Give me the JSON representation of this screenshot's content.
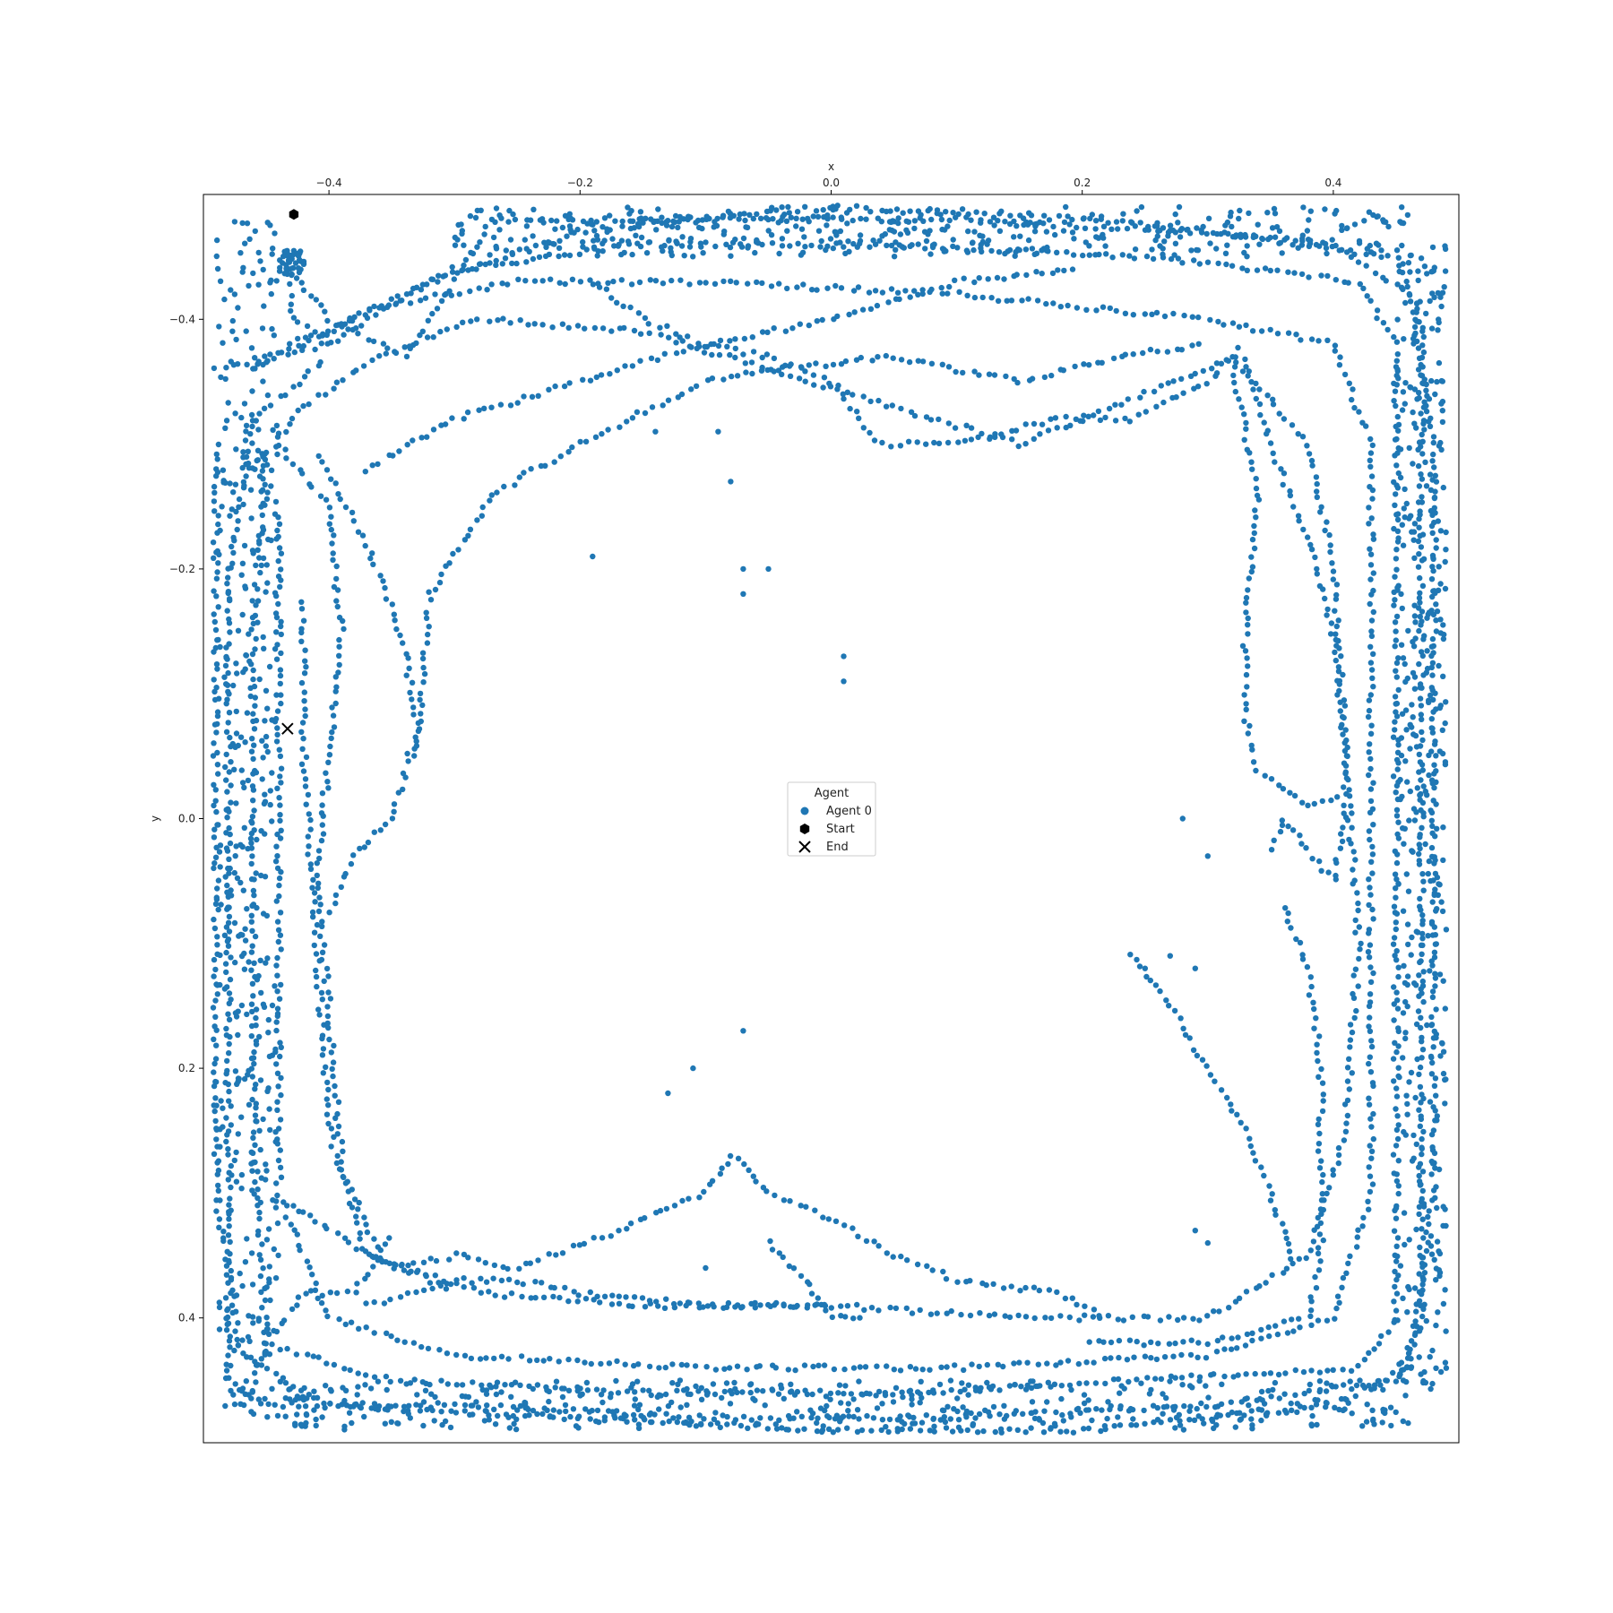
{
  "chart_data": {
    "type": "scatter",
    "title": "",
    "xlabel": "x",
    "ylabel": "y",
    "x_axis_position": "top",
    "y_axis_inverted": true,
    "xlim": [
      -0.5,
      0.5
    ],
    "ylim": [
      -0.5,
      0.5
    ],
    "x_ticks": [
      -0.4,
      -0.2,
      0.0,
      0.2,
      0.4
    ],
    "x_tick_labels": [
      "−0.4",
      "−0.2",
      "0.0",
      "0.2",
      "0.4"
    ],
    "y_ticks": [
      -0.4,
      -0.2,
      0.0,
      0.2,
      0.4
    ],
    "y_tick_labels": [
      "−0.4",
      "−0.2",
      "0.0",
      "0.2",
      "0.4"
    ],
    "grid": false,
    "legend": {
      "title": "Agent",
      "placement": "center",
      "entries": [
        {
          "label": "Agent 0",
          "marker": "circle",
          "color": "#1f77b4"
        },
        {
          "label": "Start",
          "marker": "hexagon",
          "color": "#000000"
        },
        {
          "label": "End",
          "marker": "x",
          "color": "#000000"
        }
      ]
    },
    "series": [
      {
        "name": "Agent 0",
        "color": "#1f77b4",
        "description_paths": [
          [
            [
              -0.43,
              -0.44
            ],
            [
              -0.4,
              -0.4
            ],
            [
              -0.34,
              -0.37
            ],
            [
              -0.3,
              -0.43
            ],
            [
              -0.27,
              -0.48
            ],
            [
              -0.1,
              -0.48
            ],
            [
              0.1,
              -0.48
            ],
            [
              0.3,
              -0.47
            ],
            [
              0.45,
              -0.45
            ],
            [
              0.47,
              -0.4
            ],
            [
              0.47,
              -0.2
            ],
            [
              0.47,
              0.0
            ],
            [
              0.47,
              0.2
            ],
            [
              0.47,
              0.4
            ],
            [
              0.45,
              0.45
            ],
            [
              0.3,
              0.47
            ],
            [
              0.1,
              0.48
            ],
            [
              -0.1,
              0.48
            ],
            [
              -0.3,
              0.47
            ],
            [
              -0.45,
              0.47
            ],
            [
              -0.48,
              0.45
            ],
            [
              -0.48,
              0.2
            ],
            [
              -0.48,
              0.0
            ],
            [
              -0.48,
              -0.2
            ],
            [
              -0.46,
              -0.32
            ],
            [
              -0.4,
              -0.37
            ]
          ],
          [
            [
              -0.49,
              -0.36
            ],
            [
              -0.4,
              -0.38
            ],
            [
              -0.32,
              -0.43
            ],
            [
              -0.2,
              -0.47
            ],
            [
              0.0,
              -0.49
            ],
            [
              0.2,
              -0.48
            ],
            [
              0.4,
              -0.46
            ],
            [
              0.46,
              -0.42
            ],
            [
              0.48,
              -0.3
            ],
            [
              0.48,
              -0.1
            ],
            [
              0.48,
              0.1
            ],
            [
              0.48,
              0.3
            ],
            [
              0.46,
              0.44
            ],
            [
              0.4,
              0.47
            ],
            [
              0.2,
              0.49
            ],
            [
              0.0,
              0.49
            ],
            [
              -0.2,
              0.48
            ],
            [
              -0.4,
              0.47
            ],
            [
              -0.47,
              0.43
            ],
            [
              -0.49,
              0.3
            ],
            [
              -0.49,
              0.1
            ],
            [
              -0.49,
              -0.1
            ],
            [
              -0.49,
              -0.3
            ]
          ],
          [
            [
              -0.46,
              -0.36
            ],
            [
              -0.38,
              -0.4
            ],
            [
              -0.3,
              -0.44
            ],
            [
              -0.15,
              -0.46
            ],
            [
              0.05,
              -0.46
            ],
            [
              0.25,
              -0.45
            ],
            [
              0.42,
              -0.43
            ],
            [
              0.45,
              -0.38
            ],
            [
              0.45,
              -0.15
            ],
            [
              0.45,
              0.05
            ],
            [
              0.45,
              0.25
            ],
            [
              0.45,
              0.4
            ],
            [
              0.42,
              0.44
            ],
            [
              0.25,
              0.45
            ],
            [
              0.05,
              0.46
            ],
            [
              -0.15,
              0.46
            ],
            [
              -0.35,
              0.45
            ],
            [
              -0.45,
              0.42
            ],
            [
              -0.46,
              0.25
            ],
            [
              -0.46,
              0.05
            ],
            [
              -0.46,
              -0.15
            ],
            [
              -0.45,
              -0.3
            ]
          ],
          [
            [
              -0.43,
              -0.38
            ],
            [
              -0.36,
              -0.41
            ],
            [
              -0.25,
              -0.43
            ],
            [
              -0.1,
              -0.43
            ],
            [
              0.1,
              -0.42
            ],
            [
              0.3,
              -0.4
            ],
            [
              0.4,
              -0.38
            ],
            [
              0.43,
              -0.3
            ],
            [
              0.43,
              -0.1
            ],
            [
              0.43,
              0.1
            ],
            [
              0.43,
              0.3
            ],
            [
              0.4,
              0.4
            ],
            [
              0.3,
              0.43
            ],
            [
              0.1,
              0.44
            ],
            [
              -0.1,
              0.44
            ],
            [
              -0.3,
              0.43
            ],
            [
              -0.4,
              0.4
            ],
            [
              -0.44,
              0.3
            ],
            [
              -0.44,
              0.1
            ],
            [
              -0.44,
              -0.1
            ],
            [
              -0.44,
              -0.25
            ]
          ],
          [
            [
              -0.46,
              -0.28
            ],
            [
              -0.42,
              -0.33
            ],
            [
              -0.36,
              -0.37
            ],
            [
              -0.28,
              -0.4
            ],
            [
              -0.15,
              -0.39
            ],
            [
              -0.05,
              -0.36
            ],
            [
              0.05,
              -0.33
            ],
            [
              0.15,
              -0.3
            ],
            [
              0.25,
              -0.34
            ],
            [
              0.32,
              -0.37
            ],
            [
              0.38,
              -0.3
            ],
            [
              0.4,
              -0.2
            ],
            [
              0.41,
              -0.05
            ],
            [
              0.42,
              0.1
            ],
            [
              0.41,
              0.25
            ],
            [
              0.38,
              0.35
            ],
            [
              0.3,
              0.4
            ],
            [
              0.15,
              0.4
            ],
            [
              0.0,
              0.39
            ],
            [
              -0.15,
              0.39
            ],
            [
              -0.28,
              0.38
            ],
            [
              -0.37,
              0.35
            ],
            [
              -0.4,
              0.25
            ],
            [
              -0.41,
              0.1
            ],
            [
              -0.42,
              -0.05
            ],
            [
              -0.42,
              -0.18
            ]
          ],
          [
            [
              -0.44,
              -0.3
            ],
            [
              -0.4,
              -0.25
            ],
            [
              -0.39,
              -0.15
            ],
            [
              -0.4,
              -0.05
            ],
            [
              -0.41,
              0.05
            ],
            [
              -0.4,
              0.15
            ],
            [
              -0.39,
              0.28
            ],
            [
              -0.36,
              0.35
            ],
            [
              -0.3,
              0.38
            ]
          ],
          [
            [
              -0.41,
              -0.29
            ],
            [
              -0.37,
              -0.22
            ],
            [
              -0.34,
              -0.14
            ],
            [
              -0.33,
              -0.07
            ],
            [
              -0.35,
              0.0
            ],
            [
              -0.38,
              0.03
            ],
            [
              -0.4,
              0.08
            ]
          ],
          [
            [
              -0.37,
              -0.28
            ],
            [
              -0.3,
              -0.32
            ],
            [
              -0.2,
              -0.35
            ],
            [
              -0.1,
              -0.38
            ],
            [
              0.0,
              -0.4
            ],
            [
              0.1,
              -0.43
            ],
            [
              0.2,
              -0.44
            ]
          ],
          [
            [
              -0.33,
              -0.05
            ],
            [
              -0.32,
              -0.18
            ],
            [
              -0.27,
              -0.26
            ],
            [
              -0.2,
              -0.3
            ],
            [
              -0.1,
              -0.35
            ],
            [
              -0.05,
              -0.36
            ],
            [
              0.05,
              -0.37
            ],
            [
              0.15,
              -0.35
            ],
            [
              0.23,
              -0.37
            ],
            [
              0.3,
              -0.38
            ]
          ],
          [
            [
              -0.19,
              -0.43
            ],
            [
              -0.15,
              -0.4
            ],
            [
              -0.1,
              -0.38
            ],
            [
              -0.05,
              -0.37
            ],
            [
              0.0,
              -0.35
            ],
            [
              0.04,
              -0.3
            ],
            [
              0.1,
              -0.3
            ],
            [
              0.18,
              -0.32
            ],
            [
              0.24,
              -0.32
            ],
            [
              0.3,
              -0.35
            ],
            [
              0.33,
              -0.38
            ]
          ],
          [
            [
              0.33,
              -0.37
            ],
            [
              0.35,
              -0.3
            ],
            [
              0.38,
              -0.22
            ],
            [
              0.4,
              -0.15
            ],
            [
              0.41,
              -0.05
            ],
            [
              0.41,
              0.0
            ],
            [
              0.4,
              0.05
            ],
            [
              0.36,
              0.0
            ],
            [
              0.35,
              0.03
            ]
          ],
          [
            [
              0.32,
              -0.36
            ],
            [
              0.34,
              -0.26
            ],
            [
              0.33,
              -0.16
            ],
            [
              0.33,
              -0.08
            ],
            [
              0.34,
              -0.04
            ],
            [
              0.38,
              -0.01
            ],
            [
              0.41,
              -0.02
            ]
          ],
          [
            [
              0.36,
              0.07
            ],
            [
              0.38,
              0.12
            ],
            [
              0.39,
              0.2
            ],
            [
              0.39,
              0.28
            ],
            [
              0.39,
              0.35
            ],
            [
              0.38,
              0.4
            ],
            [
              0.3,
              0.42
            ],
            [
              0.2,
              0.42
            ]
          ],
          [
            [
              0.24,
              0.11
            ],
            [
              0.27,
              0.15
            ],
            [
              0.3,
              0.2
            ],
            [
              0.33,
              0.25
            ],
            [
              0.35,
              0.3
            ],
            [
              0.37,
              0.36
            ]
          ],
          [
            [
              -0.43,
              0.31
            ],
            [
              -0.4,
              0.33
            ],
            [
              -0.35,
              0.36
            ],
            [
              -0.3,
              0.35
            ],
            [
              -0.25,
              0.36
            ],
            [
              -0.17,
              0.33
            ],
            [
              -0.1,
              0.3
            ],
            [
              -0.08,
              0.27
            ],
            [
              -0.05,
              0.3
            ],
            [
              0.0,
              0.32
            ],
            [
              0.05,
              0.35
            ],
            [
              0.1,
              0.37
            ],
            [
              0.18,
              0.38
            ],
            [
              0.22,
              0.4
            ]
          ],
          [
            [
              -0.05,
              0.34
            ],
            [
              -0.02,
              0.37
            ],
            [
              0.0,
              0.4
            ],
            [
              0.03,
              0.4
            ]
          ],
          [
            [
              -0.37,
              0.39
            ],
            [
              -0.3,
              0.37
            ],
            [
              -0.25,
              0.37
            ],
            [
              -0.2,
              0.38
            ],
            [
              -0.1,
              0.39
            ],
            [
              0.0,
              0.39
            ]
          ],
          [
            [
              -0.46,
              0.45
            ],
            [
              -0.45,
              0.42
            ],
            [
              -0.42,
              0.38
            ],
            [
              -0.38,
              0.38
            ],
            [
              -0.35,
              0.33
            ]
          ],
          [
            [
              -0.43,
              -0.44
            ],
            [
              -0.43,
              -0.4
            ],
            [
              -0.41,
              -0.39
            ],
            [
              -0.39,
              -0.38
            ]
          ]
        ],
        "isolated_points": [
          [
            -0.19,
            -0.21
          ],
          [
            -0.05,
            -0.2
          ],
          [
            0.01,
            -0.13
          ],
          [
            0.01,
            -0.11
          ],
          [
            -0.14,
            -0.31
          ],
          [
            -0.13,
            0.22
          ],
          [
            -0.1,
            0.36
          ],
          [
            -0.09,
            -0.31
          ],
          [
            -0.08,
            -0.27
          ],
          [
            -0.07,
            -0.2
          ],
          [
            -0.07,
            -0.18
          ],
          [
            -0.11,
            0.2
          ],
          [
            -0.07,
            0.17
          ],
          [
            0.29,
            0.33
          ],
          [
            0.3,
            0.34
          ],
          [
            0.28,
            -0.0
          ],
          [
            0.3,
            0.03
          ],
          [
            0.29,
            0.12
          ],
          [
            0.25,
            0.12
          ],
          [
            0.27,
            0.11
          ]
        ]
      }
    ],
    "start": {
      "x": -0.428,
      "y": -0.484
    },
    "end": {
      "x": -0.433,
      "y": -0.072
    }
  }
}
